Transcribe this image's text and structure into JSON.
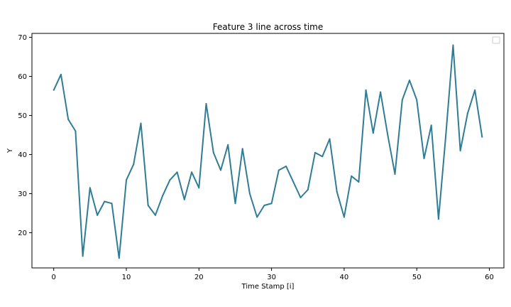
{
  "chart_data": {
    "type": "line",
    "title": "Feature 3 line across time",
    "xlabel": "Time Stamp [i]",
    "ylabel": "Y",
    "xlim": [
      -3,
      62
    ],
    "ylim": [
      11,
      71
    ],
    "x_ticks": [
      0,
      10,
      20,
      30,
      40,
      50,
      60
    ],
    "y_ticks": [
      20,
      30,
      40,
      50,
      60,
      70
    ],
    "grid": false,
    "legend": "top-right (empty)",
    "series": [
      {
        "color": "#2f7c96",
        "x": [
          0,
          1,
          2,
          3,
          4,
          5,
          6,
          7,
          8,
          9,
          10,
          11,
          12,
          13,
          14,
          15,
          16,
          17,
          18,
          19,
          20,
          21,
          22,
          23,
          24,
          25,
          26,
          27,
          28,
          29,
          30,
          31,
          32,
          33,
          34,
          35,
          36,
          37,
          38,
          39,
          40,
          41,
          42,
          43,
          44,
          45,
          46,
          47,
          48,
          49,
          50,
          51,
          52,
          53,
          54,
          55,
          56,
          57,
          58,
          59
        ],
        "values": [
          56.5,
          60.5,
          49,
          46,
          14,
          31.5,
          24.5,
          28,
          27.5,
          13.5,
          33.5,
          37.5,
          48,
          27,
          24.5,
          29.5,
          33.5,
          35.5,
          28.5,
          35.5,
          31.5,
          53,
          40.5,
          36,
          42.5,
          27.5,
          41.5,
          30,
          24,
          27,
          27.5,
          36,
          37,
          33,
          29,
          31,
          40.5,
          39.5,
          44,
          30.5,
          24,
          34.5,
          33,
          56.5,
          45.5,
          56,
          45,
          35,
          54,
          59,
          54,
          39,
          47.5,
          23.5,
          45,
          68,
          41,
          50.5,
          56.5,
          44.5
        ]
      }
    ]
  }
}
